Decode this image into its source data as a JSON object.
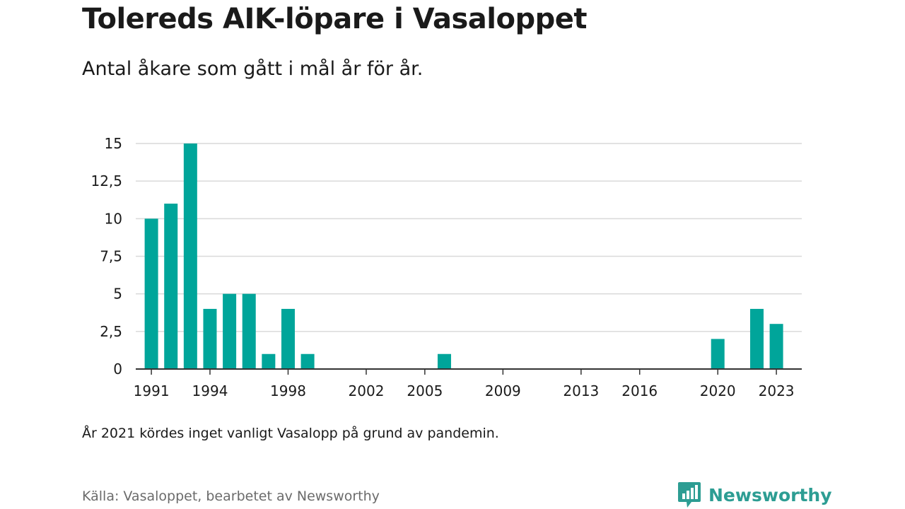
{
  "title": "Tolereds AIK-löpare i Vasaloppet",
  "subtitle": "Antal åkare som gått i mål år för år.",
  "note": "År 2021 kördes inget vanligt Vasalopp på grund av pandemin.",
  "source": "Källa: Vasaloppet, bearbetet av Newsworthy",
  "logo": {
    "text": "Newsworthy",
    "icon": "newsworthy-logo-icon",
    "color": "#2d9d93"
  },
  "colors": {
    "bar": "#00a59a",
    "grid": "#d9d9d9",
    "axis": "#333333"
  },
  "chart_data": {
    "type": "bar",
    "x": [
      1991,
      1992,
      1993,
      1994,
      1995,
      1996,
      1997,
      1998,
      1999,
      2000,
      2001,
      2002,
      2003,
      2004,
      2005,
      2006,
      2007,
      2008,
      2009,
      2010,
      2011,
      2012,
      2013,
      2014,
      2015,
      2016,
      2017,
      2018,
      2019,
      2020,
      2021,
      2022,
      2023
    ],
    "values": [
      10,
      11,
      15,
      4,
      5,
      5,
      1,
      4,
      1,
      0,
      0,
      0,
      0,
      0,
      0,
      1,
      0,
      0,
      0,
      0,
      0,
      0,
      0,
      0,
      0,
      0,
      0,
      0,
      0,
      2,
      0,
      4,
      3
    ],
    "xticks": [
      1991,
      1994,
      1998,
      2002,
      2005,
      2009,
      2013,
      2016,
      2020,
      2023
    ],
    "yticks": [
      0,
      2.5,
      5,
      7.5,
      10,
      12.5,
      15
    ],
    "ytick_labels": [
      "0",
      "2,5",
      "5",
      "7,5",
      "10",
      "12,5",
      "15"
    ],
    "ylim": [
      0,
      15
    ],
    "xlim": [
      1990.2,
      2024.3
    ],
    "grid": true,
    "legend": "none"
  }
}
